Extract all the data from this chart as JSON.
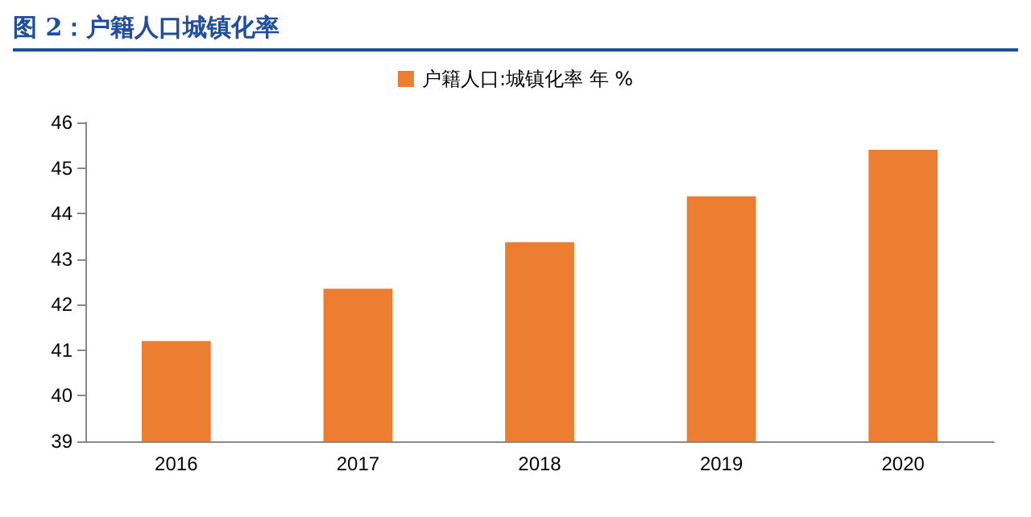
{
  "chart_data": {
    "type": "bar",
    "title": "图 2：户籍人口城镇化率",
    "categories": [
      "2016",
      "2017",
      "2018",
      "2019",
      "2020"
    ],
    "series": [
      {
        "name": "户籍人口:城镇化率 年 %",
        "color": "#ed7d31",
        "values": [
          41.2,
          42.35,
          43.37,
          44.38,
          45.4
        ]
      }
    ],
    "ylim": [
      39,
      46
    ],
    "yticks": [
      39,
      40,
      41,
      42,
      43,
      44,
      45,
      46
    ],
    "grid": false,
    "legend": "top"
  }
}
